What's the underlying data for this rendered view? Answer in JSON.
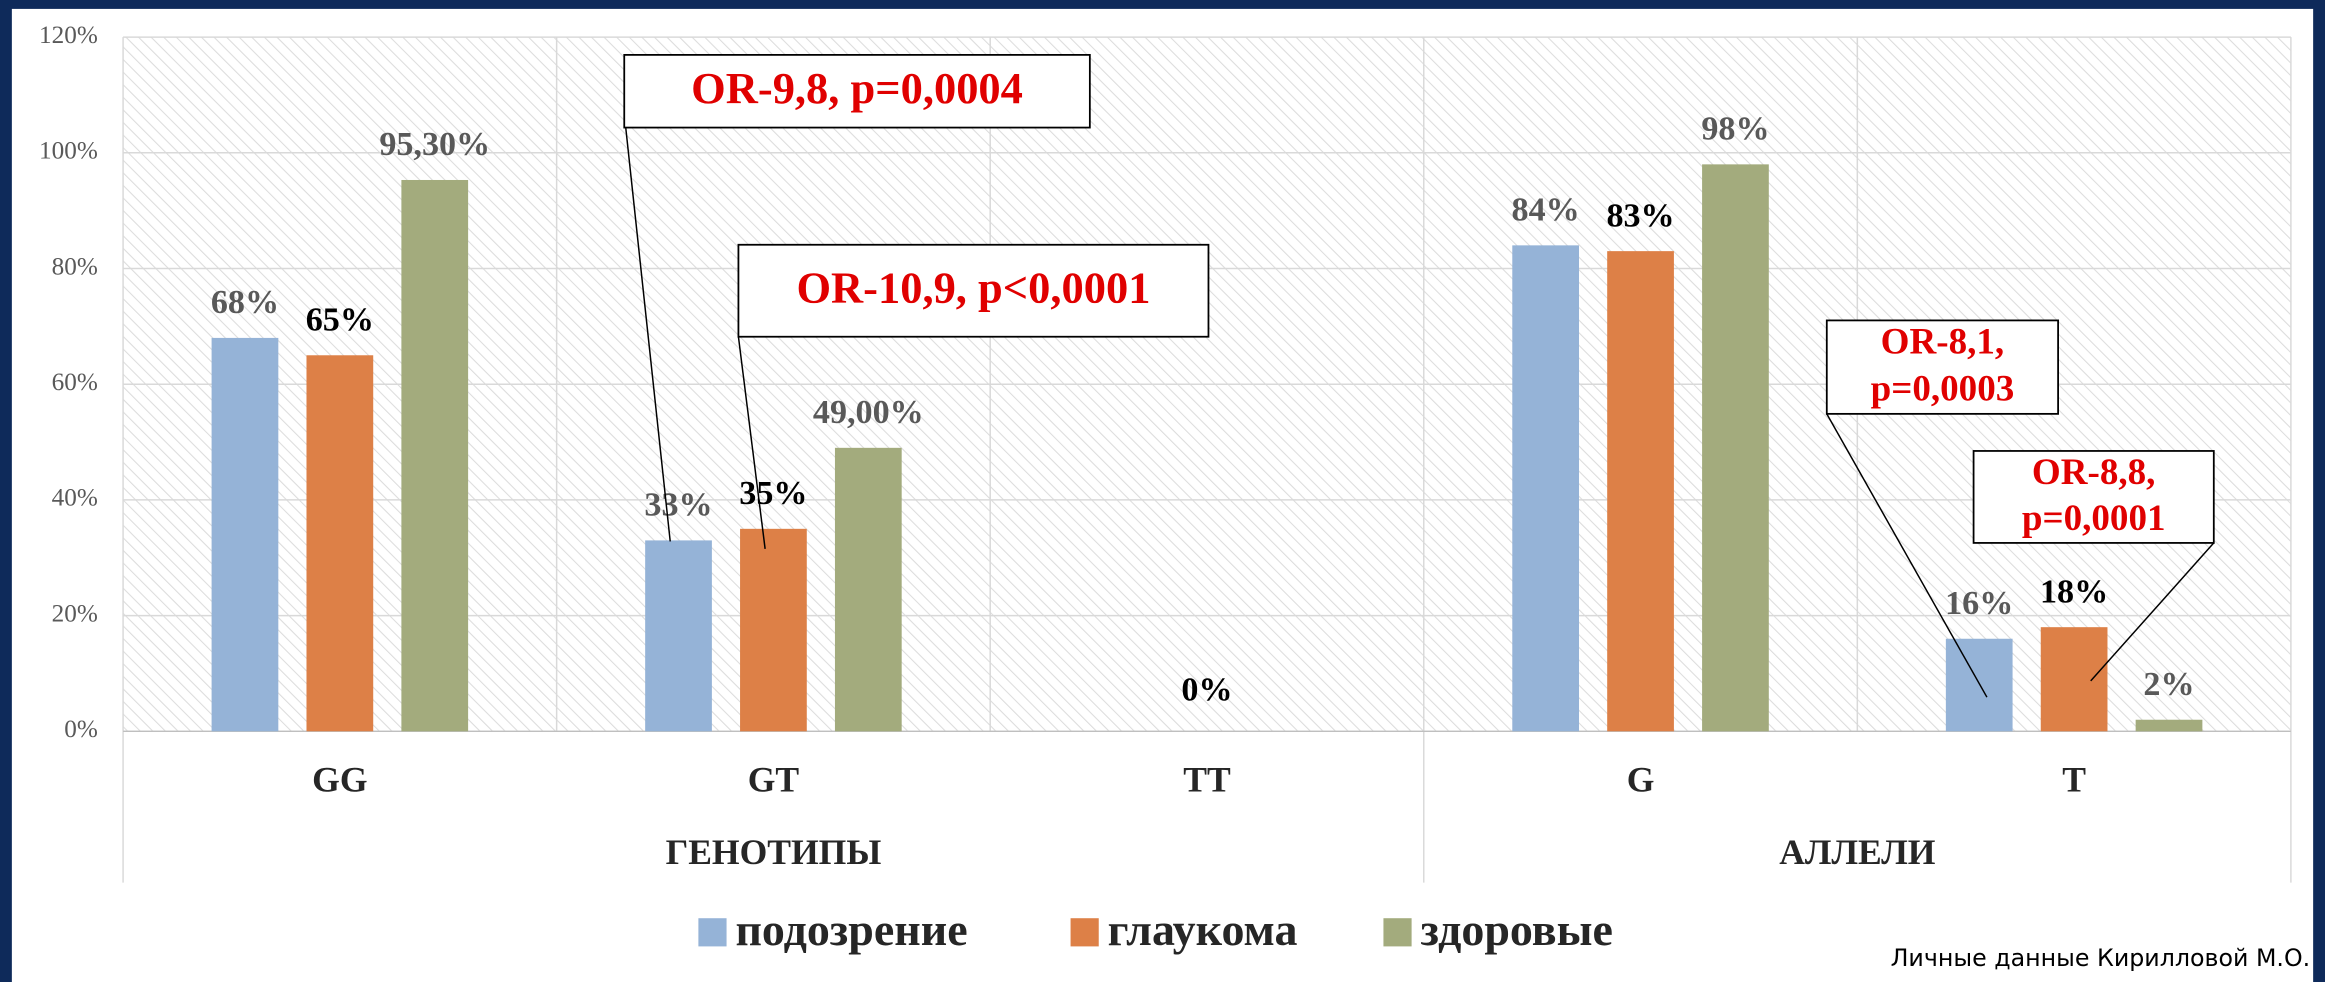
{
  "chart_data": {
    "type": "bar",
    "categories": [
      "GG",
      "GT",
      "TT",
      "G",
      "T"
    ],
    "groups": [
      {
        "label": "ГЕНОТИПЫ",
        "span": [
          0,
          2
        ]
      },
      {
        "label": "АЛЛЕЛИ",
        "span": [
          3,
          4
        ]
      }
    ],
    "series": [
      {
        "name": "подозрение",
        "color": "#95b3d7",
        "label_color": "#595959",
        "values": [
          68,
          33,
          null,
          84,
          16
        ],
        "value_labels": [
          "68%",
          "33%",
          null,
          "84%",
          "16%"
        ]
      },
      {
        "name": "глаукома",
        "color": "#dd8047",
        "label_color": "#000000",
        "values": [
          65,
          35,
          0,
          83,
          18
        ],
        "value_labels": [
          "65%",
          "35%",
          "0%",
          "83%",
          "18%"
        ]
      },
      {
        "name": "здоровые",
        "color": "#a3ab7d",
        "label_color": "#595959",
        "values": [
          95.3,
          49,
          null,
          98,
          2
        ],
        "value_labels": [
          "95,30%",
          "49,00%",
          null,
          "98%",
          "2%"
        ]
      }
    ],
    "ylim": [
      0,
      120
    ],
    "yticks": [
      {
        "value": 0,
        "label": "0%"
      },
      {
        "value": 20,
        "label": "20%"
      },
      {
        "value": 40,
        "label": "40%"
      },
      {
        "value": 60,
        "label": "60%"
      },
      {
        "value": 80,
        "label": "80%"
      },
      {
        "value": 100,
        "label": "100%"
      },
      {
        "value": 120,
        "label": "120%"
      }
    ],
    "grid": true,
    "legend": "bottom",
    "annotations": [
      {
        "lines": [
          "OR-9,8, p=0,0004"
        ]
      },
      {
        "lines": [
          "OR-10,9, p<0,0001"
        ]
      },
      {
        "lines": [
          "OR-8,1,",
          "p=0,0003"
        ]
      },
      {
        "lines": [
          "OR-8,8,",
          "p=0,0001"
        ]
      }
    ],
    "source": "Личные данные Кирилловой М.О."
  }
}
